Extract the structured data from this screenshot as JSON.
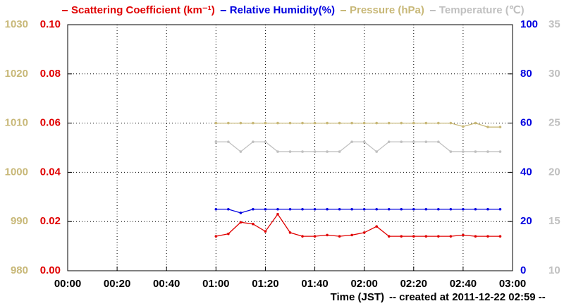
{
  "chart_data": {
    "type": "line",
    "xlabel": "Time (JST)",
    "note": "-- created at 2011-12-22 02:59 --",
    "x": [
      "01:00",
      "01:05",
      "01:10",
      "01:15",
      "01:20",
      "01:25",
      "01:30",
      "01:35",
      "01:40",
      "01:45",
      "01:50",
      "01:55",
      "02:00",
      "02:05",
      "02:10",
      "02:15",
      "02:20",
      "02:25",
      "02:30",
      "02:35",
      "02:40",
      "02:45",
      "02:50",
      "02:55"
    ],
    "xlim": [
      "00:00",
      "03:00"
    ],
    "xticks": [
      "00:00",
      "00:20",
      "00:40",
      "01:00",
      "01:20",
      "01:40",
      "02:00",
      "02:20",
      "02:40",
      "03:00"
    ],
    "ylim": [
      0,
      0.1
    ],
    "yticks": [
      {
        "value": 0,
        "label": "0.00"
      },
      {
        "value": 0.02,
        "label": "0.02"
      },
      {
        "value": 0.04,
        "label": "0.04"
      },
      {
        "value": 0.06,
        "label": "0.06"
      },
      {
        "value": 0.08,
        "label": "0.08"
      },
      {
        "value": 0.1,
        "label": "0.10"
      }
    ],
    "y2lim": [
      0,
      100
    ],
    "y2ticks": [
      0,
      20,
      40,
      60,
      80,
      100
    ],
    "y3lim": [
      980,
      1030
    ],
    "y3ticks": [
      980,
      990,
      1000,
      1010,
      1020,
      1030
    ],
    "y4lim": [
      10,
      35
    ],
    "y4ticks": [
      10,
      15,
      20,
      25,
      30,
      35
    ],
    "grid": true,
    "series": [
      {
        "name": "Scattering Coefficient (km⁻¹)",
        "color": "#e00000",
        "axis": "y",
        "values": [
          0.014,
          0.015,
          0.0197,
          0.019,
          0.016,
          0.023,
          0.0155,
          0.014,
          0.014,
          0.0145,
          0.014,
          0.0145,
          0.0155,
          0.018,
          0.014,
          0.014,
          0.014,
          0.014,
          0.014,
          0.014,
          0.0145,
          0.014,
          0.014,
          0.014
        ]
      },
      {
        "name": "Relative Humidity(%)",
        "color": "#0000e0",
        "axis": "y2",
        "values": [
          25,
          25,
          23.5,
          25,
          25,
          25,
          25,
          25,
          25,
          25,
          25,
          25,
          25,
          25,
          25,
          25,
          25,
          25,
          25,
          25,
          25,
          25,
          25,
          25
        ]
      },
      {
        "name": "Pressure (hPa)",
        "color": "#c8b878",
        "axis": "y3",
        "values": [
          1010,
          1010,
          1010,
          1010,
          1010,
          1010,
          1010,
          1010,
          1010,
          1010,
          1010,
          1010,
          1010,
          1010,
          1010,
          1010,
          1010,
          1010,
          1010,
          1010,
          1009.3,
          1010,
          1009.2,
          1009.2
        ]
      },
      {
        "name": "Temperature (℃)",
        "color": "#c0c0c0",
        "axis": "y4",
        "values": [
          23.1,
          23.1,
          22.1,
          23.1,
          23.1,
          22.1,
          22.1,
          22.1,
          22.1,
          22.1,
          22.1,
          23.1,
          23.1,
          22.1,
          23.1,
          23.1,
          23.1,
          23.1,
          23.1,
          22.1,
          22.1,
          22.1,
          22.1,
          22.1
        ]
      }
    ]
  }
}
